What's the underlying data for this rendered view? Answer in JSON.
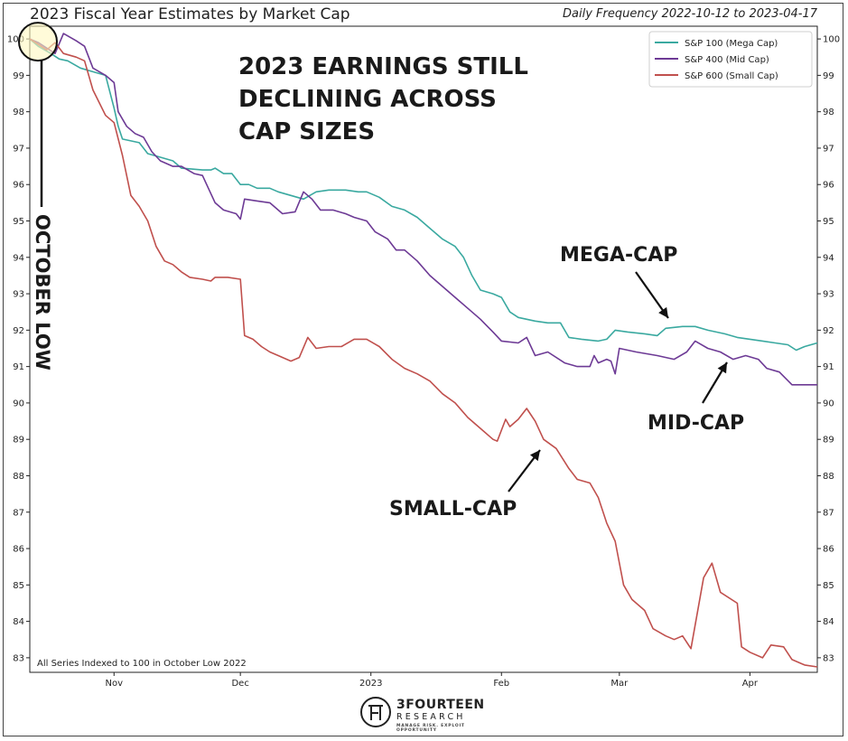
{
  "header": {
    "title": "2023 Fiscal Year Estimates by Market Cap",
    "subtitle": "Daily Frequency 2022-10-12 to 2023-04-17"
  },
  "logo": {
    "name": "3FOURTEEN",
    "sub": "RESEARCH",
    "tagline": "MANAGE RISK. EXPLOIT OPPORTUNITY"
  },
  "colors": {
    "mega": "#3aa9a0",
    "mid": "#6d3a95",
    "small": "#c0504d",
    "highlight_fill": "#fff8c0",
    "text": "#1a1a1a"
  },
  "chart_data": {
    "type": "line",
    "x_range": [
      "2022-10-12",
      "2023-04-17"
    ],
    "ylim": [
      82.6,
      100.35
    ],
    "y_ticks": [
      83,
      84,
      85,
      86,
      87,
      88,
      89,
      90,
      91,
      92,
      93,
      94,
      95,
      96,
      97,
      98,
      99,
      100
    ],
    "x_ticks": [
      {
        "date": "2022-11-01",
        "label": "Nov"
      },
      {
        "date": "2022-12-01",
        "label": "Dec"
      },
      {
        "date": "2023-01-01",
        "label": "2023"
      },
      {
        "date": "2023-02-01",
        "label": "Feb"
      },
      {
        "date": "2023-03-01",
        "label": "Mar"
      },
      {
        "date": "2023-04-01",
        "label": "Apr"
      }
    ],
    "grid": false,
    "legend_position": "top-right",
    "series": [
      {
        "name": "S&P 100 (Mega Cap)",
        "key": "mega",
        "points": [
          [
            "2022-10-12",
            100.0
          ],
          [
            "2022-10-14",
            99.8
          ],
          [
            "2022-10-17",
            99.6
          ],
          [
            "2022-10-19",
            99.45
          ],
          [
            "2022-10-21",
            99.4
          ],
          [
            "2022-10-24",
            99.2
          ],
          [
            "2022-10-27",
            99.1
          ],
          [
            "2022-10-30",
            99.0
          ],
          [
            "2022-11-01",
            98.1
          ],
          [
            "2022-11-02",
            97.6
          ],
          [
            "2022-11-03",
            97.25
          ],
          [
            "2022-11-07",
            97.15
          ],
          [
            "2022-11-09",
            96.85
          ],
          [
            "2022-11-12",
            96.75
          ],
          [
            "2022-11-15",
            96.65
          ],
          [
            "2022-11-17",
            96.45
          ],
          [
            "2022-11-22",
            96.4
          ],
          [
            "2022-11-24",
            96.4
          ],
          [
            "2022-11-25",
            96.45
          ],
          [
            "2022-11-27",
            96.3
          ],
          [
            "2022-11-29",
            96.3
          ],
          [
            "2022-12-01",
            96.0
          ],
          [
            "2022-12-03",
            96.0
          ],
          [
            "2022-12-05",
            95.9
          ],
          [
            "2022-12-08",
            95.9
          ],
          [
            "2022-12-10",
            95.8
          ],
          [
            "2022-12-13",
            95.7
          ],
          [
            "2022-12-16",
            95.6
          ],
          [
            "2022-12-19",
            95.8
          ],
          [
            "2022-12-22",
            95.85
          ],
          [
            "2022-12-26",
            95.85
          ],
          [
            "2022-12-29",
            95.8
          ],
          [
            "2022-12-31",
            95.8
          ],
          [
            "2023-01-03",
            95.65
          ],
          [
            "2023-01-06",
            95.4
          ],
          [
            "2023-01-09",
            95.3
          ],
          [
            "2023-01-12",
            95.1
          ],
          [
            "2023-01-15",
            94.8
          ],
          [
            "2023-01-18",
            94.5
          ],
          [
            "2023-01-21",
            94.3
          ],
          [
            "2023-01-23",
            94.0
          ],
          [
            "2023-01-25",
            93.5
          ],
          [
            "2023-01-27",
            93.1
          ],
          [
            "2023-01-30",
            93.0
          ],
          [
            "2023-02-01",
            92.9
          ],
          [
            "2023-02-03",
            92.5
          ],
          [
            "2023-02-05",
            92.35
          ],
          [
            "2023-02-09",
            92.25
          ],
          [
            "2023-02-12",
            92.2
          ],
          [
            "2023-02-15",
            92.2
          ],
          [
            "2023-02-17",
            91.8
          ],
          [
            "2023-02-20",
            91.75
          ],
          [
            "2023-02-24",
            91.7
          ],
          [
            "2023-02-26",
            91.75
          ],
          [
            "2023-02-28",
            92.0
          ],
          [
            "2023-03-03",
            91.95
          ],
          [
            "2023-03-07",
            91.9
          ],
          [
            "2023-03-10",
            91.85
          ],
          [
            "2023-03-12",
            92.05
          ],
          [
            "2023-03-16",
            92.1
          ],
          [
            "2023-03-19",
            92.1
          ],
          [
            "2023-03-22",
            92.0
          ],
          [
            "2023-03-26",
            91.9
          ],
          [
            "2023-03-29",
            91.8
          ],
          [
            "2023-04-01",
            91.75
          ],
          [
            "2023-04-04",
            91.7
          ],
          [
            "2023-04-07",
            91.65
          ],
          [
            "2023-04-10",
            91.6
          ],
          [
            "2023-04-12",
            91.45
          ],
          [
            "2023-04-14",
            91.55
          ],
          [
            "2023-04-17",
            91.65
          ]
        ]
      },
      {
        "name": "S&P 400 (Mid Cap)",
        "key": "mid",
        "points": [
          [
            "2022-10-12",
            100.0
          ],
          [
            "2022-10-14",
            99.9
          ],
          [
            "2022-10-16",
            99.75
          ],
          [
            "2022-10-18",
            99.6
          ],
          [
            "2022-10-20",
            100.15
          ],
          [
            "2022-10-23",
            99.95
          ],
          [
            "2022-10-25",
            99.8
          ],
          [
            "2022-10-27",
            99.2
          ],
          [
            "2022-10-30",
            99.0
          ],
          [
            "2022-11-01",
            98.8
          ],
          [
            "2022-11-02",
            98.0
          ],
          [
            "2022-11-04",
            97.6
          ],
          [
            "2022-11-06",
            97.4
          ],
          [
            "2022-11-08",
            97.3
          ],
          [
            "2022-11-10",
            96.9
          ],
          [
            "2022-11-12",
            96.65
          ],
          [
            "2022-11-15",
            96.5
          ],
          [
            "2022-11-17",
            96.5
          ],
          [
            "2022-11-20",
            96.3
          ],
          [
            "2022-11-22",
            96.25
          ],
          [
            "2022-11-25",
            95.5
          ],
          [
            "2022-11-27",
            95.3
          ],
          [
            "2022-11-30",
            95.2
          ],
          [
            "2022-12-01",
            95.05
          ],
          [
            "2022-12-02",
            95.6
          ],
          [
            "2022-12-05",
            95.55
          ],
          [
            "2022-12-08",
            95.5
          ],
          [
            "2022-12-11",
            95.2
          ],
          [
            "2022-12-14",
            95.25
          ],
          [
            "2022-12-16",
            95.8
          ],
          [
            "2022-12-18",
            95.6
          ],
          [
            "2022-12-20",
            95.3
          ],
          [
            "2022-12-23",
            95.3
          ],
          [
            "2022-12-26",
            95.2
          ],
          [
            "2022-12-28",
            95.1
          ],
          [
            "2022-12-31",
            95.0
          ],
          [
            "2023-01-02",
            94.7
          ],
          [
            "2023-01-05",
            94.5
          ],
          [
            "2023-01-07",
            94.2
          ],
          [
            "2023-01-09",
            94.2
          ],
          [
            "2023-01-12",
            93.9
          ],
          [
            "2023-01-15",
            93.5
          ],
          [
            "2023-01-18",
            93.2
          ],
          [
            "2023-01-21",
            92.9
          ],
          [
            "2023-01-24",
            92.6
          ],
          [
            "2023-01-27",
            92.3
          ],
          [
            "2023-01-30",
            91.95
          ],
          [
            "2023-02-01",
            91.7
          ],
          [
            "2023-02-05",
            91.65
          ],
          [
            "2023-02-07",
            91.8
          ],
          [
            "2023-02-09",
            91.3
          ],
          [
            "2023-02-12",
            91.4
          ],
          [
            "2023-02-16",
            91.1
          ],
          [
            "2023-02-19",
            91.0
          ],
          [
            "2023-02-22",
            91.0
          ],
          [
            "2023-02-23",
            91.3
          ],
          [
            "2023-02-24",
            91.1
          ],
          [
            "2023-02-26",
            91.2
          ],
          [
            "2023-02-27",
            91.15
          ],
          [
            "2023-02-28",
            90.8
          ],
          [
            "2023-03-01",
            91.5
          ],
          [
            "2023-03-05",
            91.4
          ],
          [
            "2023-03-10",
            91.3
          ],
          [
            "2023-03-14",
            91.2
          ],
          [
            "2023-03-17",
            91.4
          ],
          [
            "2023-03-19",
            91.7
          ],
          [
            "2023-03-22",
            91.5
          ],
          [
            "2023-03-25",
            91.4
          ],
          [
            "2023-03-28",
            91.2
          ],
          [
            "2023-03-31",
            91.3
          ],
          [
            "2023-04-03",
            91.2
          ],
          [
            "2023-04-05",
            90.95
          ],
          [
            "2023-04-08",
            90.85
          ],
          [
            "2023-04-11",
            90.5
          ],
          [
            "2023-04-14",
            90.5
          ],
          [
            "2023-04-17",
            90.5
          ]
        ]
      },
      {
        "name": "S&P 600 (Small Cap)",
        "key": "small",
        "points": [
          [
            "2022-10-12",
            100.0
          ],
          [
            "2022-10-14",
            99.85
          ],
          [
            "2022-10-16",
            99.7
          ],
          [
            "2022-10-18",
            99.9
          ],
          [
            "2022-10-20",
            99.6
          ],
          [
            "2022-10-23",
            99.5
          ],
          [
            "2022-10-25",
            99.4
          ],
          [
            "2022-10-27",
            98.6
          ],
          [
            "2022-10-30",
            97.9
          ],
          [
            "2022-11-01",
            97.7
          ],
          [
            "2022-11-03",
            96.8
          ],
          [
            "2022-11-05",
            95.7
          ],
          [
            "2022-11-07",
            95.4
          ],
          [
            "2022-11-09",
            95.0
          ],
          [
            "2022-11-11",
            94.3
          ],
          [
            "2022-11-13",
            93.9
          ],
          [
            "2022-11-15",
            93.8
          ],
          [
            "2022-11-17",
            93.6
          ],
          [
            "2022-11-19",
            93.45
          ],
          [
            "2022-11-22",
            93.4
          ],
          [
            "2022-11-24",
            93.35
          ],
          [
            "2022-11-25",
            93.45
          ],
          [
            "2022-11-28",
            93.45
          ],
          [
            "2022-12-01",
            93.4
          ],
          [
            "2022-12-02",
            91.85
          ],
          [
            "2022-12-04",
            91.75
          ],
          [
            "2022-12-06",
            91.55
          ],
          [
            "2022-12-08",
            91.4
          ],
          [
            "2022-12-10",
            91.3
          ],
          [
            "2022-12-13",
            91.15
          ],
          [
            "2022-12-15",
            91.25
          ],
          [
            "2022-12-17",
            91.8
          ],
          [
            "2022-12-19",
            91.5
          ],
          [
            "2022-12-22",
            91.55
          ],
          [
            "2022-12-25",
            91.55
          ],
          [
            "2022-12-28",
            91.75
          ],
          [
            "2022-12-31",
            91.75
          ],
          [
            "2023-01-03",
            91.55
          ],
          [
            "2023-01-06",
            91.2
          ],
          [
            "2023-01-09",
            90.95
          ],
          [
            "2023-01-12",
            90.8
          ],
          [
            "2023-01-15",
            90.6
          ],
          [
            "2023-01-18",
            90.25
          ],
          [
            "2023-01-21",
            90.0
          ],
          [
            "2023-01-24",
            89.6
          ],
          [
            "2023-01-27",
            89.3
          ],
          [
            "2023-01-30",
            89.0
          ],
          [
            "2023-01-31",
            88.95
          ],
          [
            "2023-02-02",
            89.55
          ],
          [
            "2023-02-03",
            89.35
          ],
          [
            "2023-02-05",
            89.55
          ],
          [
            "2023-02-07",
            89.85
          ],
          [
            "2023-02-09",
            89.5
          ],
          [
            "2023-02-11",
            89.0
          ],
          [
            "2023-02-14",
            88.75
          ],
          [
            "2023-02-17",
            88.2
          ],
          [
            "2023-02-19",
            87.9
          ],
          [
            "2023-02-22",
            87.8
          ],
          [
            "2023-02-24",
            87.4
          ],
          [
            "2023-02-26",
            86.7
          ],
          [
            "2023-02-28",
            86.2
          ],
          [
            "2023-03-02",
            85.0
          ],
          [
            "2023-03-04",
            84.6
          ],
          [
            "2023-03-07",
            84.3
          ],
          [
            "2023-03-09",
            83.8
          ],
          [
            "2023-03-12",
            83.6
          ],
          [
            "2023-03-14",
            83.5
          ],
          [
            "2023-03-16",
            83.6
          ],
          [
            "2023-03-18",
            83.25
          ],
          [
            "2023-03-21",
            85.2
          ],
          [
            "2023-03-23",
            85.6
          ],
          [
            "2023-03-25",
            84.8
          ],
          [
            "2023-03-29",
            84.5
          ],
          [
            "2023-03-30",
            83.3
          ],
          [
            "2023-04-01",
            83.15
          ],
          [
            "2023-04-04",
            83.0
          ],
          [
            "2023-04-06",
            83.35
          ],
          [
            "2023-04-09",
            83.3
          ],
          [
            "2023-04-11",
            82.95
          ],
          [
            "2023-04-14",
            82.8
          ],
          [
            "2023-04-17",
            82.75
          ]
        ]
      }
    ],
    "annotations": {
      "headline": [
        "2023 EARNINGS STILL",
        "DECLINING ACROSS",
        "CAP SIZES"
      ],
      "mega": "MEGA-CAP",
      "mid": "MID-CAP",
      "small": "SMALL-CAP",
      "october_low": "OCTOBER LOW",
      "footnote": "All Series Indexed to 100 in October Low 2022"
    }
  }
}
